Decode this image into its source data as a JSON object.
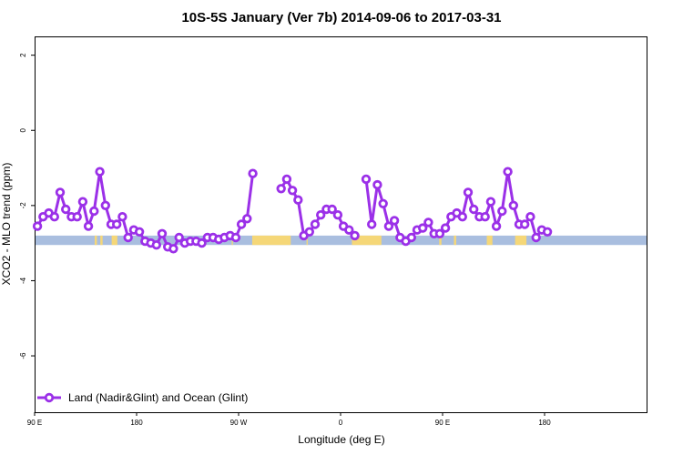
{
  "chart_data": {
    "type": "line",
    "title": "10S-5S January (Ver 7b)   2014-09-06 to 2017-03-31",
    "xlabel": "Longitude (deg E)",
    "ylabel": "XCO2 - MLO trend (ppm)",
    "xlim": [
      90,
      450
    ],
    "ylim": [
      -7.5,
      2.5
    ],
    "x_ticks": [
      {
        "value": 90,
        "label": "90 E"
      },
      {
        "value": 180,
        "label": "180"
      },
      {
        "value": 270,
        "label": "90 W"
      },
      {
        "value": 360,
        "label": "0"
      },
      {
        "value": 450,
        "label": "90 E"
      },
      {
        "value": 540,
        "label": "180"
      }
    ],
    "y_ticks": [
      {
        "value": 2,
        "label": "2"
      },
      {
        "value": 0,
        "label": "0"
      },
      {
        "value": -2,
        "label": "-2"
      },
      {
        "value": -4,
        "label": "-4"
      },
      {
        "value": -6,
        "label": "-6"
      }
    ],
    "grid": false,
    "legend": {
      "position": "bottom-left",
      "label": "Land (Nadir&Glint) and Ocean (Glint)"
    },
    "colors": {
      "series": "#9b30e8",
      "ocean": "#a9bedf",
      "land": "#f5d778"
    },
    "surface_band": {
      "y_range": [
        -3.05,
        -2.8
      ],
      "land_segments": [
        [
          143,
          145
        ],
        [
          148,
          150
        ],
        [
          158,
          163
        ],
        [
          264,
          265
        ],
        [
          282,
          316
        ],
        [
          330,
          331
        ],
        [
          370,
          396
        ],
        [
          447,
          449
        ],
        [
          460,
          462
        ],
        [
          489,
          494
        ],
        [
          514,
          524
        ]
      ],
      "land_segments_x_units": "deg E, continuous 90 to 630 across the plot"
    },
    "series": [
      {
        "name": "Land (Nadir&Glint) and Ocean (Glint)",
        "segments": [
          {
            "x": [
              92.5,
              97.5,
              102.5,
              107.5,
              112.5,
              117.5,
              122.5,
              127.5,
              132.5,
              137.5,
              142.5,
              147.5,
              152.5,
              157.5,
              162.5,
              167.5,
              172.5,
              177.5,
              182.5,
              187.5,
              192.5,
              197.5,
              202.5,
              207.5,
              212.5,
              217.5,
              222.5,
              227.5,
              232.5,
              237.5,
              242.5,
              247.5,
              252.5,
              257.5,
              262.5,
              267.5,
              272.5,
              277.5,
              282.5
            ],
            "y": [
              -2.55,
              -2.3,
              -2.2,
              -2.3,
              -1.65,
              -2.1,
              -2.3,
              -2.3,
              -1.9,
              -2.55,
              -2.15,
              -1.1,
              -2.0,
              -2.5,
              -2.5,
              -2.3,
              -2.85,
              -2.65,
              -2.7,
              -2.95,
              -3.0,
              -3.05,
              -2.75,
              -3.1,
              -3.15,
              -2.85,
              -3.0,
              -2.95,
              -2.95,
              -3.0,
              -2.85,
              -2.85,
              -2.9,
              -2.85,
              -2.8,
              -2.85,
              -2.5,
              -2.35,
              -1.15
            ]
          },
          {
            "x": [
              307.5,
              312.5,
              317.5,
              322.5,
              327.5,
              332.5,
              337.5,
              342.5,
              347.5,
              352.5,
              357.5,
              362.5,
              367.5,
              372.5
            ],
            "y": [
              -1.55,
              -1.3,
              -1.6,
              -1.85,
              -2.8,
              -2.7,
              -2.5,
              -2.25,
              -2.1,
              -2.1,
              -2.25,
              -2.55,
              -2.65,
              -2.8
            ]
          },
          {
            "x": [
              382.5,
              387.5,
              392.5,
              397.5,
              402.5,
              407.5,
              412.5,
              417.5,
              422.5,
              427.5,
              432.5,
              437.5,
              442.5,
              447.5,
              452.5,
              457.5,
              462.5,
              467.5,
              472.5,
              477.5,
              482.5,
              487.5,
              492.5,
              497.5,
              502.5,
              507.5,
              512.5,
              517.5,
              522.5,
              527.5,
              532.5,
              537.5,
              542.5
            ],
            "y": [
              -1.3,
              -2.5,
              -1.45,
              -1.95,
              -2.55,
              -2.4,
              -2.85,
              -2.95,
              -2.85,
              -2.65,
              -2.6,
              -2.45,
              -2.75,
              -2.75,
              -2.6,
              -2.3,
              -2.2,
              -2.3,
              -1.65,
              -2.1,
              -2.3,
              -2.3,
              -1.9,
              -2.55,
              -2.15,
              -1.1,
              -2.0,
              -2.5,
              -2.5,
              -2.3,
              -2.85,
              -2.65,
              -2.7
            ]
          }
        ]
      }
    ]
  }
}
